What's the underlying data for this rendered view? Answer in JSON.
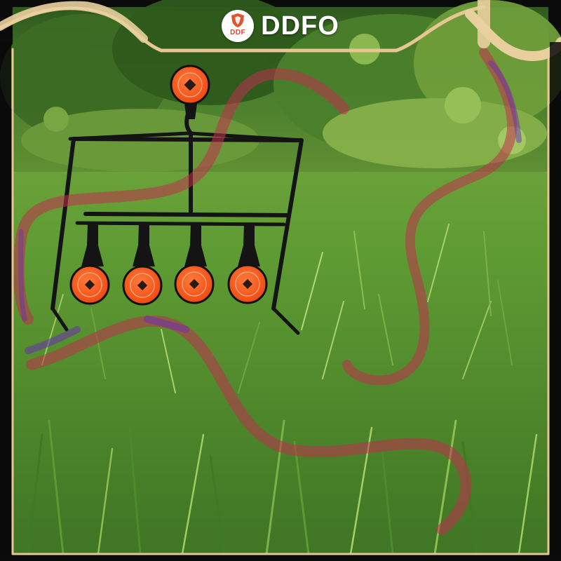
{
  "brand": {
    "name": "DDFO",
    "logo_text": "DDF"
  },
  "colors": {
    "frame_gold": "#e6c793",
    "target_orange": "#ff5a1f",
    "ribbon_red": "#c0304e",
    "ribbon_purple": "#6b2fb0",
    "grass_green": "#5f9b33",
    "stand_black": "#141414"
  },
  "icons": {
    "logo": "shield-crest-icon"
  }
}
